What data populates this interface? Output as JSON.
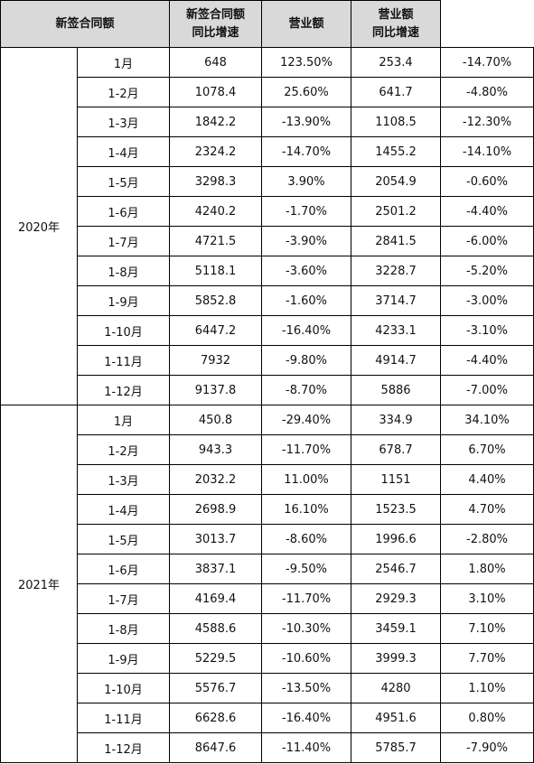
{
  "header": {
    "contracts": "新签合同额",
    "contracts_yoy_l1": "新签合同额",
    "contracts_yoy_l2": "同比增速",
    "revenue": "营业额",
    "revenue_yoy_l1": "营业额",
    "revenue_yoy_l2": "同比增速"
  },
  "groups": [
    {
      "year": "2020年",
      "rows": [
        [
          "1月",
          "648",
          "123.50%",
          "253.4",
          "-14.70%"
        ],
        [
          "1-2月",
          "1078.4",
          "25.60%",
          "641.7",
          "-4.80%"
        ],
        [
          "1-3月",
          "1842.2",
          "-13.90%",
          "1108.5",
          "-12.30%"
        ],
        [
          "1-4月",
          "2324.2",
          "-14.70%",
          "1455.2",
          "-14.10%"
        ],
        [
          "1-5月",
          "3298.3",
          "3.90%",
          "2054.9",
          "-0.60%"
        ],
        [
          "1-6月",
          "4240.2",
          "-1.70%",
          "2501.2",
          "-4.40%"
        ],
        [
          "1-7月",
          "4721.5",
          "-3.90%",
          "2841.5",
          "-6.00%"
        ],
        [
          "1-8月",
          "5118.1",
          "-3.60%",
          "3228.7",
          "-5.20%"
        ],
        [
          "1-9月",
          "5852.8",
          "-1.60%",
          "3714.7",
          "-3.00%"
        ],
        [
          "1-10月",
          "6447.2",
          "-16.40%",
          "4233.1",
          "-3.10%"
        ],
        [
          "1-11月",
          "7932",
          "-9.80%",
          "4914.7",
          "-4.40%"
        ],
        [
          "1-12月",
          "9137.8",
          "-8.70%",
          "5886",
          "-7.00%"
        ]
      ]
    },
    {
      "year": "2021年",
      "rows": [
        [
          "1月",
          "450.8",
          "-29.40%",
          "334.9",
          "34.10%"
        ],
        [
          "1-2月",
          "943.3",
          "-11.70%",
          "678.7",
          "6.70%"
        ],
        [
          "1-3月",
          "2032.2",
          "11.00%",
          "1151",
          "4.40%"
        ],
        [
          "1-4月",
          "2698.9",
          "16.10%",
          "1523.5",
          "4.70%"
        ],
        [
          "1-5月",
          "3013.7",
          "-8.60%",
          "1996.6",
          "-2.80%"
        ],
        [
          "1-6月",
          "3837.1",
          "-9.50%",
          "2546.7",
          "1.80%"
        ],
        [
          "1-7月",
          "4169.4",
          "-11.70%",
          "2929.3",
          "3.10%"
        ],
        [
          "1-8月",
          "4588.6",
          "-10.30%",
          "3459.1",
          "7.10%"
        ],
        [
          "1-9月",
          "5229.5",
          "-10.60%",
          "3999.3",
          "7.70%"
        ],
        [
          "1-10月",
          "5576.7",
          "-13.50%",
          "4280",
          "1.10%"
        ],
        [
          "1-11月",
          "6628.6",
          "-16.40%",
          "4951.6",
          "0.80%"
        ],
        [
          "1-12月",
          "8647.6",
          "-11.40%",
          "5785.7",
          "-7.90%"
        ]
      ]
    }
  ]
}
